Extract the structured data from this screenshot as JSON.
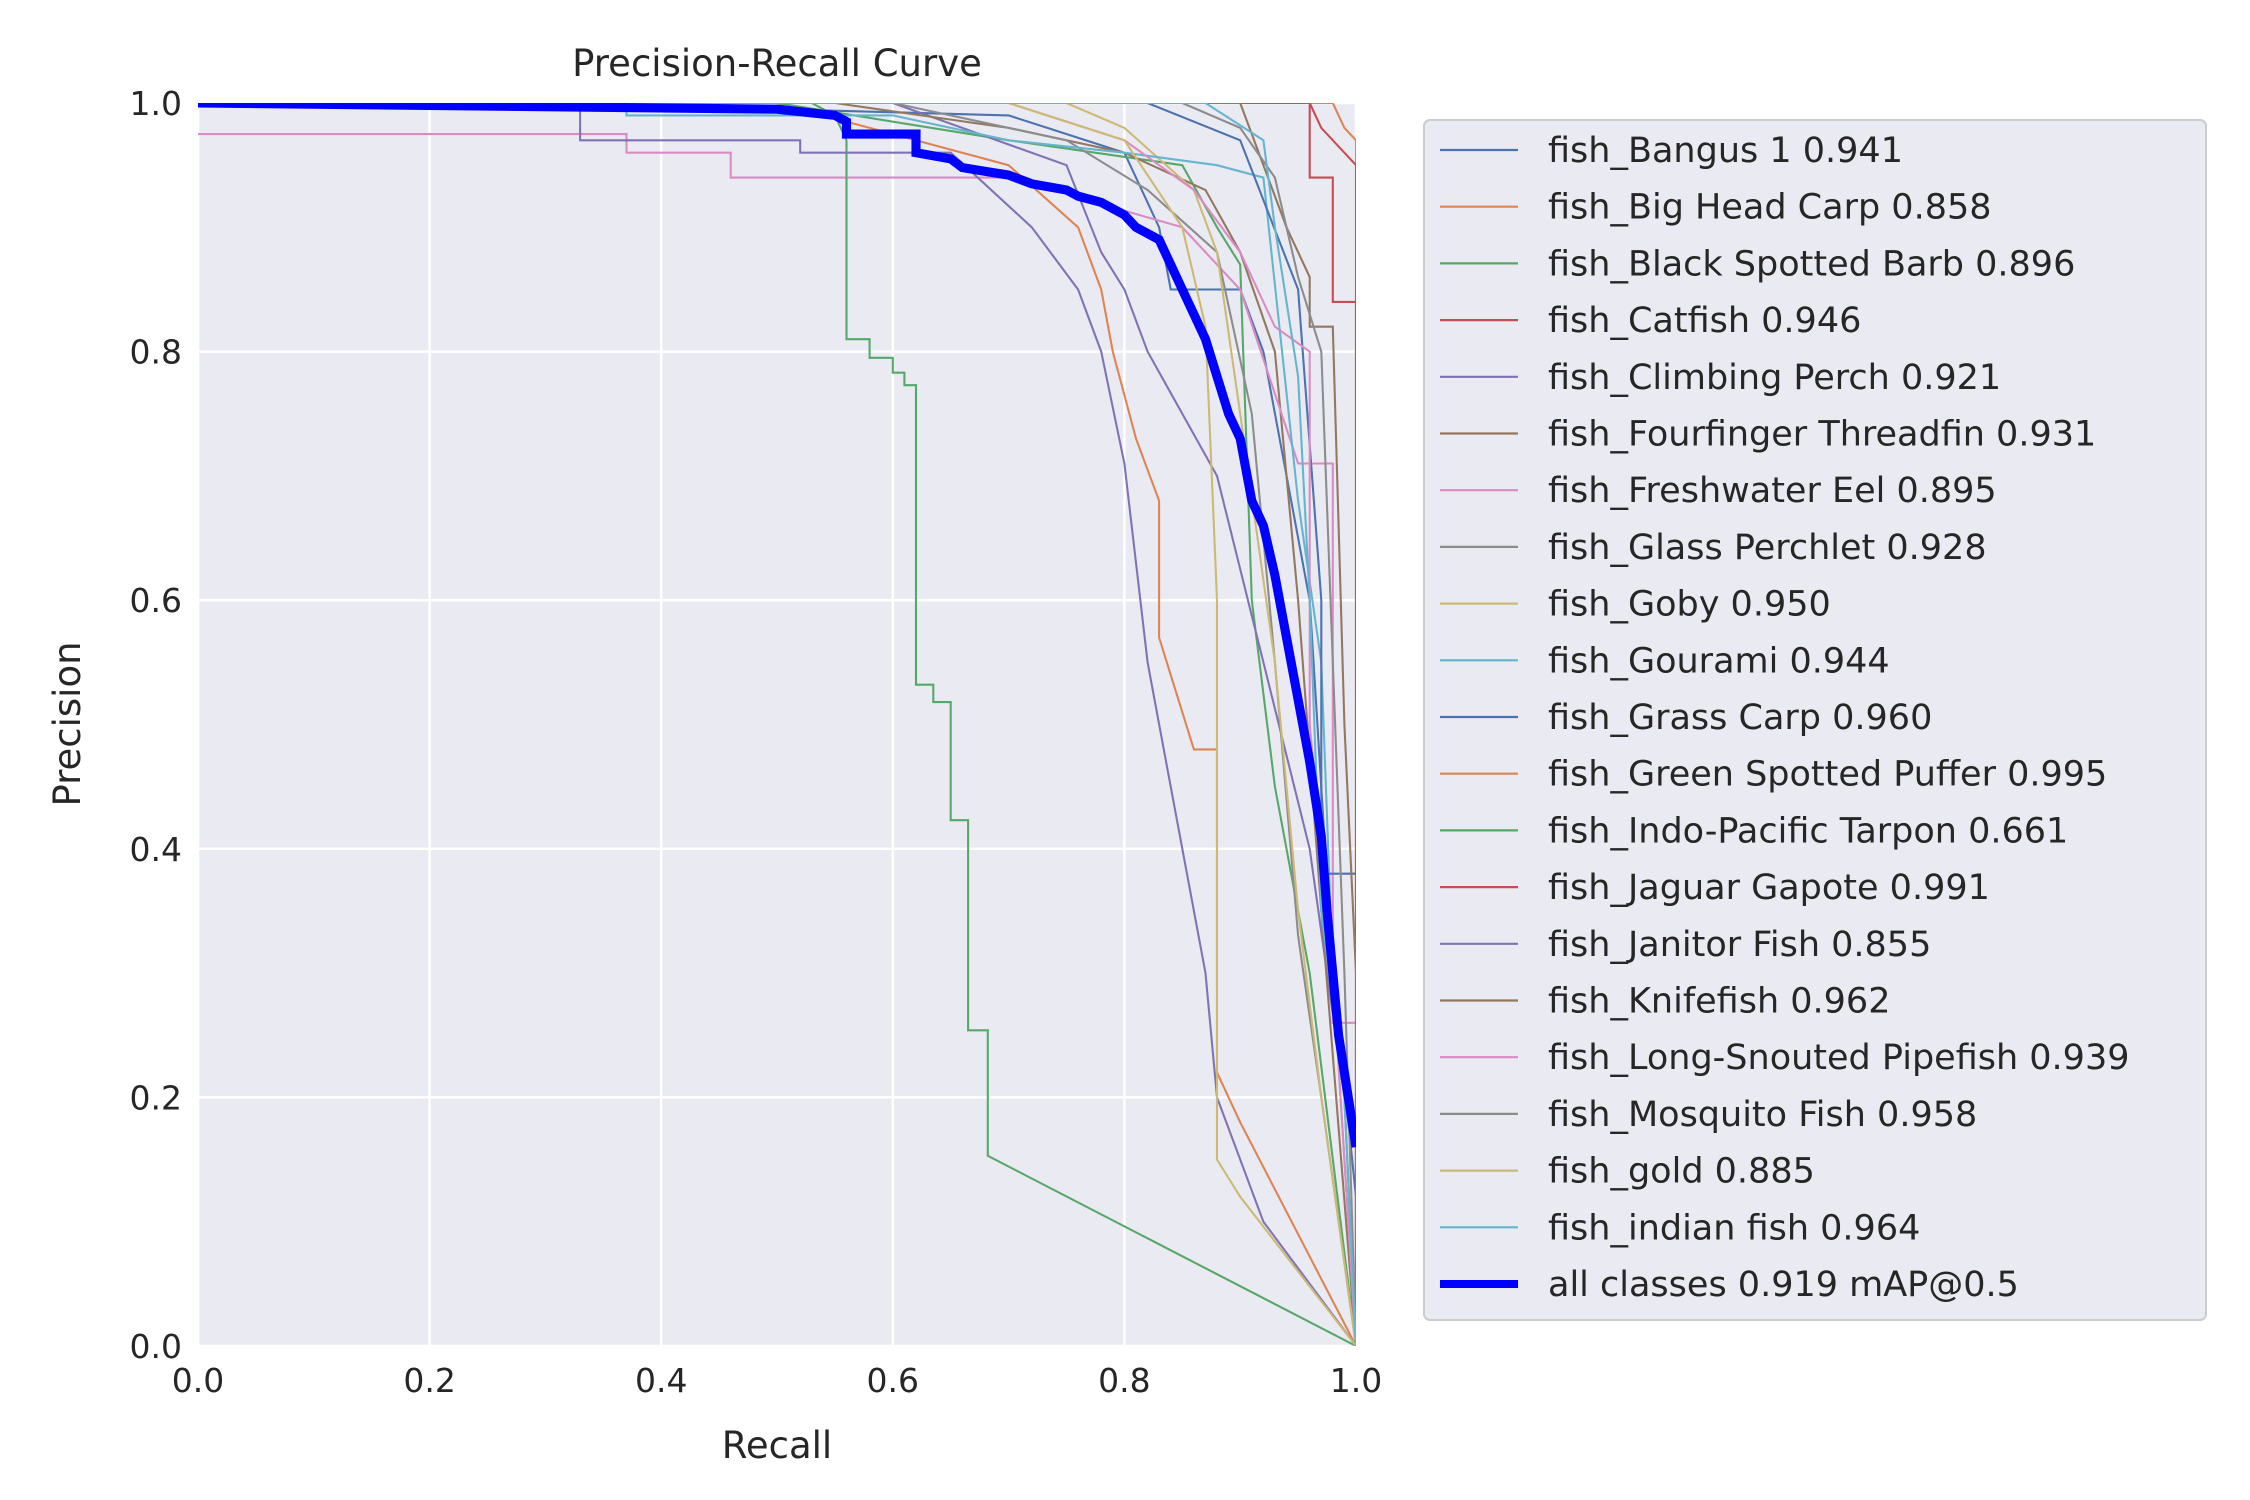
{
  "chart_data": {
    "type": "line",
    "title": "Precision-Recall Curve",
    "xlabel": "Recall",
    "ylabel": "Precision",
    "xlim": [
      0,
      1
    ],
    "ylim": [
      0,
      1
    ],
    "x_ticks": [
      "0.0",
      "0.2",
      "0.4",
      "0.6",
      "0.8",
      "1.0"
    ],
    "y_ticks": [
      "0.0",
      "0.2",
      "0.4",
      "0.6",
      "0.8",
      "1.0"
    ],
    "grid": true,
    "legend_position": "outside-right",
    "series": [
      {
        "name": "fish_Bangus 1 0.941",
        "color": "#4c72b0",
        "width": 1.6,
        "points": [
          [
            0,
            1
          ],
          [
            0.3,
            1
          ],
          [
            0.7,
            0.99
          ],
          [
            0.8,
            0.96
          ],
          [
            0.83,
            0.9
          ],
          [
            0.84,
            0.85
          ],
          [
            0.9,
            0.85
          ],
          [
            0.92,
            0.8
          ],
          [
            0.96,
            0.6
          ],
          [
            0.98,
            0.3
          ],
          [
            1,
            0.12
          ],
          [
            1,
            0
          ]
        ]
      },
      {
        "name": "fish_Big Head Carp 0.858",
        "color": "#dd8452",
        "width": 1.6,
        "points": [
          [
            0,
            1
          ],
          [
            0.5,
            1
          ],
          [
            0.7,
            0.95
          ],
          [
            0.76,
            0.9
          ],
          [
            0.78,
            0.85
          ],
          [
            0.79,
            0.8
          ],
          [
            0.81,
            0.73
          ],
          [
            0.83,
            0.68
          ],
          [
            0.83,
            0.57
          ],
          [
            0.86,
            0.48
          ],
          [
            0.88,
            0.48
          ],
          [
            0.88,
            0.22
          ],
          [
            0.9,
            0.18
          ],
          [
            1,
            0
          ]
        ]
      },
      {
        "name": "fish_Black Spotted Barb 0.896",
        "color": "#55a868",
        "width": 1.6,
        "points": [
          [
            0,
            1
          ],
          [
            0.5,
            1
          ],
          [
            0.7,
            0.97
          ],
          [
            0.85,
            0.95
          ],
          [
            0.88,
            0.9
          ],
          [
            0.9,
            0.87
          ],
          [
            0.91,
            0.6
          ],
          [
            0.93,
            0.45
          ],
          [
            0.96,
            0.3
          ],
          [
            1,
            0
          ]
        ]
      },
      {
        "name": "fish_Catfish 0.946",
        "color": "#c44e52",
        "width": 1.6,
        "points": [
          [
            0,
            1
          ],
          [
            0.96,
            1
          ],
          [
            0.96,
            0.94
          ],
          [
            0.98,
            0.94
          ],
          [
            0.98,
            0.84
          ],
          [
            1,
            0.84
          ],
          [
            1,
            0
          ]
        ]
      },
      {
        "name": "fish_Climbing Perch 0.921",
        "color": "#8172b3",
        "width": 1.6,
        "points": [
          [
            0,
            1
          ],
          [
            0.6,
            1
          ],
          [
            0.75,
            0.95
          ],
          [
            0.78,
            0.88
          ],
          [
            0.8,
            0.85
          ],
          [
            0.82,
            0.8
          ],
          [
            0.88,
            0.7
          ],
          [
            0.92,
            0.55
          ],
          [
            0.96,
            0.4
          ],
          [
            0.99,
            0.2
          ],
          [
            1,
            0
          ]
        ]
      },
      {
        "name": "fish_Fourfinger Threadfin 0.931",
        "color": "#937860",
        "width": 1.6,
        "points": [
          [
            0,
            1
          ],
          [
            0.55,
            1
          ],
          [
            0.7,
            0.98
          ],
          [
            0.8,
            0.96
          ],
          [
            0.87,
            0.93
          ],
          [
            0.9,
            0.88
          ],
          [
            0.93,
            0.8
          ],
          [
            0.95,
            0.6
          ],
          [
            0.97,
            0.35
          ],
          [
            1,
            0
          ]
        ]
      },
      {
        "name": "fish_Freshwater Eel 0.895",
        "color": "#da8bc3",
        "width": 1.6,
        "points": [
          [
            0,
            0.975
          ],
          [
            0.37,
            0.975
          ],
          [
            0.37,
            0.96
          ],
          [
            0.46,
            0.96
          ],
          [
            0.46,
            0.94
          ],
          [
            0.7,
            0.94
          ],
          [
            0.85,
            0.9
          ],
          [
            0.9,
            0.85
          ],
          [
            0.95,
            0.71
          ],
          [
            0.98,
            0.71
          ],
          [
            0.98,
            0.26
          ],
          [
            1,
            0.26
          ],
          [
            1,
            0
          ]
        ]
      },
      {
        "name": "fish_Glass Perchlet 0.928",
        "color": "#8c8c8c",
        "width": 1.6,
        "points": [
          [
            0,
            1
          ],
          [
            0.6,
            1
          ],
          [
            0.75,
            0.97
          ],
          [
            0.82,
            0.93
          ],
          [
            0.88,
            0.88
          ],
          [
            0.91,
            0.75
          ],
          [
            0.93,
            0.55
          ],
          [
            0.95,
            0.33
          ],
          [
            0.97,
            0.2
          ],
          [
            1,
            0
          ]
        ]
      },
      {
        "name": "fish_Goby 0.950",
        "color": "#ccb974",
        "width": 1.6,
        "points": [
          [
            0,
            1
          ],
          [
            0.75,
            1
          ],
          [
            0.8,
            0.98
          ],
          [
            0.86,
            0.93
          ],
          [
            0.88,
            0.88
          ],
          [
            0.9,
            0.75
          ],
          [
            0.93,
            0.55
          ],
          [
            0.95,
            0.35
          ],
          [
            0.97,
            0.2
          ],
          [
            1,
            0
          ]
        ]
      },
      {
        "name": "fish_Gourami 0.944",
        "color": "#64b5cd",
        "width": 1.6,
        "points": [
          [
            0,
            1
          ],
          [
            0.37,
            1
          ],
          [
            0.37,
            0.99
          ],
          [
            0.6,
            0.99
          ],
          [
            0.7,
            0.97
          ],
          [
            0.8,
            0.96
          ],
          [
            0.88,
            0.95
          ],
          [
            0.92,
            0.94
          ],
          [
            0.95,
            0.68
          ],
          [
            0.97,
            0.55
          ],
          [
            0.98,
            0.3
          ],
          [
            1,
            0
          ]
        ]
      },
      {
        "name": "fish_Grass Carp 0.960",
        "color": "#4c72b0",
        "width": 1.6,
        "points": [
          [
            0,
            1
          ],
          [
            0.82,
            1
          ],
          [
            0.9,
            0.97
          ],
          [
            0.95,
            0.85
          ],
          [
            0.97,
            0.6
          ],
          [
            0.97,
            0.38
          ],
          [
            1,
            0.38
          ],
          [
            1,
            0
          ]
        ]
      },
      {
        "name": "fish_Green Spotted Puffer 0.995",
        "color": "#dd8452",
        "width": 1.6,
        "points": [
          [
            0,
            1
          ],
          [
            0.98,
            1
          ],
          [
            0.99,
            0.98
          ],
          [
            1,
            0.97
          ],
          [
            1,
            0
          ]
        ]
      },
      {
        "name": "fish_Indo-Pacific Tarpon 0.661",
        "color": "#55a868",
        "width": 1.6,
        "points": [
          [
            0,
            1
          ],
          [
            0.53,
            1
          ],
          [
            0.55,
            0.99
          ],
          [
            0.56,
            0.97
          ],
          [
            0.56,
            0.81
          ],
          [
            0.58,
            0.81
          ],
          [
            0.58,
            0.795
          ],
          [
            0.6,
            0.795
          ],
          [
            0.6,
            0.783
          ],
          [
            0.61,
            0.783
          ],
          [
            0.61,
            0.773
          ],
          [
            0.62,
            0.773
          ],
          [
            0.62,
            0.532
          ],
          [
            0.635,
            0.532
          ],
          [
            0.635,
            0.518
          ],
          [
            0.65,
            0.518
          ],
          [
            0.65,
            0.423
          ],
          [
            0.665,
            0.423
          ],
          [
            0.665,
            0.254
          ],
          [
            0.682,
            0.254
          ],
          [
            0.682,
            0.153
          ],
          [
            1,
            0
          ]
        ]
      },
      {
        "name": "fish_Jaguar Gapote 0.991",
        "color": "#c44e52",
        "width": 1.6,
        "points": [
          [
            0,
            1
          ],
          [
            0.96,
            1
          ],
          [
            0.97,
            0.98
          ],
          [
            1,
            0.95
          ],
          [
            1,
            0
          ]
        ]
      },
      {
        "name": "fish_Janitor Fish 0.855",
        "color": "#8172b3",
        "width": 1.6,
        "points": [
          [
            0,
            1
          ],
          [
            0.33,
            1
          ],
          [
            0.33,
            0.97
          ],
          [
            0.52,
            0.97
          ],
          [
            0.52,
            0.96
          ],
          [
            0.65,
            0.96
          ],
          [
            0.72,
            0.9
          ],
          [
            0.76,
            0.85
          ],
          [
            0.78,
            0.8
          ],
          [
            0.8,
            0.71
          ],
          [
            0.82,
            0.55
          ],
          [
            0.84,
            0.45
          ],
          [
            0.87,
            0.3
          ],
          [
            0.88,
            0.2
          ],
          [
            0.92,
            0.1
          ],
          [
            1,
            0
          ]
        ]
      },
      {
        "name": "fish_Knifefish 0.962",
        "color": "#937860",
        "width": 1.6,
        "points": [
          [
            0,
            1
          ],
          [
            0.9,
            1
          ],
          [
            0.92,
            0.95
          ],
          [
            0.94,
            0.9
          ],
          [
            0.96,
            0.86
          ],
          [
            0.96,
            0.82
          ],
          [
            0.98,
            0.82
          ],
          [
            0.99,
            0.5
          ],
          [
            1,
            0.3
          ],
          [
            1,
            0
          ]
        ]
      },
      {
        "name": "fish_Long-Snouted Pipefish 0.939",
        "color": "#da8bc3",
        "width": 1.6,
        "points": [
          [
            0,
            1
          ],
          [
            0.7,
            1
          ],
          [
            0.8,
            0.97
          ],
          [
            0.86,
            0.93
          ],
          [
            0.9,
            0.88
          ],
          [
            0.93,
            0.82
          ],
          [
            0.96,
            0.8
          ],
          [
            0.96,
            0.5
          ],
          [
            0.98,
            0.3
          ],
          [
            1,
            0
          ]
        ]
      },
      {
        "name": "fish_Mosquito Fish 0.958",
        "color": "#8c8c8c",
        "width": 1.6,
        "points": [
          [
            0,
            1
          ],
          [
            0.85,
            1
          ],
          [
            0.9,
            0.98
          ],
          [
            0.93,
            0.94
          ],
          [
            0.95,
            0.86
          ],
          [
            0.97,
            0.8
          ],
          [
            0.98,
            0.55
          ],
          [
            0.99,
            0.3
          ],
          [
            1,
            0
          ]
        ]
      },
      {
        "name": "fish_gold 0.885",
        "color": "#ccb974",
        "width": 1.6,
        "points": [
          [
            0,
            1
          ],
          [
            0.7,
            1
          ],
          [
            0.8,
            0.97
          ],
          [
            0.85,
            0.9
          ],
          [
            0.87,
            0.82
          ],
          [
            0.88,
            0.6
          ],
          [
            0.88,
            0.15
          ],
          [
            0.9,
            0.12
          ],
          [
            1,
            0
          ]
        ]
      },
      {
        "name": "fish_indian fish 0.964",
        "color": "#64b5cd",
        "width": 1.6,
        "points": [
          [
            0,
            1
          ],
          [
            0.87,
            1
          ],
          [
            0.92,
            0.97
          ],
          [
            0.93,
            0.9
          ],
          [
            0.95,
            0.78
          ],
          [
            0.96,
            0.6
          ],
          [
            0.97,
            0.35
          ],
          [
            0.99,
            0.2
          ],
          [
            1,
            0
          ]
        ]
      },
      {
        "name": "all classes 0.919 mAP@0.5",
        "color": "#0000ff",
        "width": 7,
        "points": [
          [
            0,
            1
          ],
          [
            0.5,
            0.995
          ],
          [
            0.55,
            0.99
          ],
          [
            0.56,
            0.985
          ],
          [
            0.56,
            0.975
          ],
          [
            0.62,
            0.975
          ],
          [
            0.62,
            0.96
          ],
          [
            0.65,
            0.955
          ],
          [
            0.66,
            0.948
          ],
          [
            0.68,
            0.945
          ],
          [
            0.7,
            0.942
          ],
          [
            0.72,
            0.935
          ],
          [
            0.75,
            0.93
          ],
          [
            0.76,
            0.925
          ],
          [
            0.78,
            0.92
          ],
          [
            0.8,
            0.91
          ],
          [
            0.81,
            0.9
          ],
          [
            0.83,
            0.89
          ],
          [
            0.84,
            0.87
          ],
          [
            0.85,
            0.85
          ],
          [
            0.86,
            0.83
          ],
          [
            0.87,
            0.81
          ],
          [
            0.88,
            0.78
          ],
          [
            0.89,
            0.75
          ],
          [
            0.9,
            0.73
          ],
          [
            0.91,
            0.68
          ],
          [
            0.92,
            0.66
          ],
          [
            0.93,
            0.62
          ],
          [
            0.94,
            0.57
          ],
          [
            0.95,
            0.52
          ],
          [
            0.96,
            0.47
          ],
          [
            0.97,
            0.41
          ],
          [
            0.975,
            0.35
          ],
          [
            0.98,
            0.3
          ],
          [
            0.985,
            0.25
          ],
          [
            0.99,
            0.22
          ],
          [
            1,
            0.16
          ]
        ]
      }
    ]
  }
}
